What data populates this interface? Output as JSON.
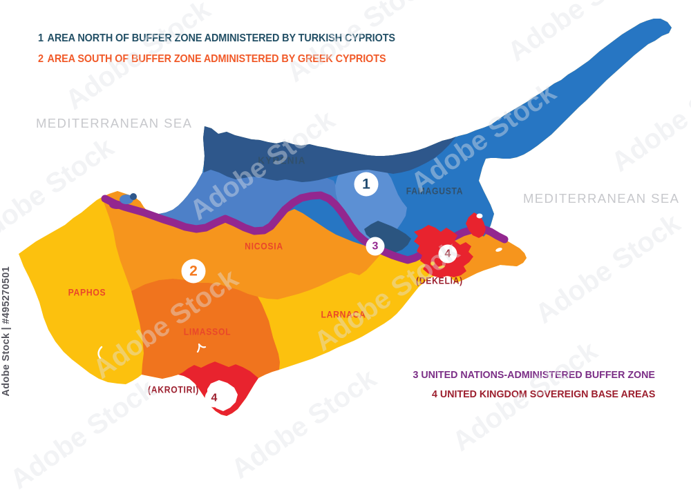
{
  "watermark": {
    "stock_id": "Adobe Stock | #495270501",
    "tile": "Adobe Stock"
  },
  "legend_top": {
    "item1": {
      "num": "1",
      "text": "AREA NORTH OF BUFFER ZONE ADMINISTERED BY TURKISH CYPRIOTS"
    },
    "item2": {
      "num": "2",
      "text": "AREA SOUTH OF BUFFER ZONE ADMINISTERED BY GREEK CYPRIOTS"
    }
  },
  "legend_bottom": {
    "item3": {
      "num": "3",
      "text": "UNITED NATIONS-ADMINISTERED BUFFER ZONE"
    },
    "item4": {
      "num": "4",
      "text": "UNITED KINGDOM SOVEREIGN BASE AREAS"
    }
  },
  "sea": {
    "west": "MEDITERRANEAN SEA",
    "east": "MEDITERRANEAN SEA"
  },
  "regions": {
    "kyrenia": "KYRENIA",
    "famagusta": "FAMAGUSTA",
    "nicosia": "NICOSIA",
    "paphos": "PAPHOS",
    "limassol": "LIMASSOL",
    "larnaca": "LARNACA",
    "dekelia": "(DEKELIA)",
    "akrotiri": "(AKROTIRI)"
  },
  "markers": {
    "m1": "1",
    "m2": "2",
    "m3": "3",
    "m4_dekelia": "4",
    "m4_akrotiri": "4"
  },
  "colors": {
    "yellow": "#FCC10E",
    "orange": "#F6951D",
    "dark_orange": "#F0741E",
    "red": "#E8232E",
    "kyrenia_blue": "#2E578B",
    "famagusta_blue": "#2776C3",
    "morphou_blue": "#4D80C8",
    "north_nicosia_blue": "#5C90D4",
    "navy_patch": "#2B5580",
    "buffer_purple": "#93278F",
    "white": "#FFFFFF",
    "legend1": "#235066",
    "legend2": "#F15A29",
    "legend3": "#7B2E86",
    "legend4": "#9C1F2E",
    "label_blue": "#31506B",
    "label_red_orange": "#E9472A",
    "label_dark_red": "#9C1F2E",
    "sea_label": "#C7C8CC",
    "marker1": "#1F4A6E",
    "marker2": "#F4791F",
    "marker3": "#93278F",
    "marker4": "#9C1F2E",
    "watermark_id": "#55555E"
  }
}
